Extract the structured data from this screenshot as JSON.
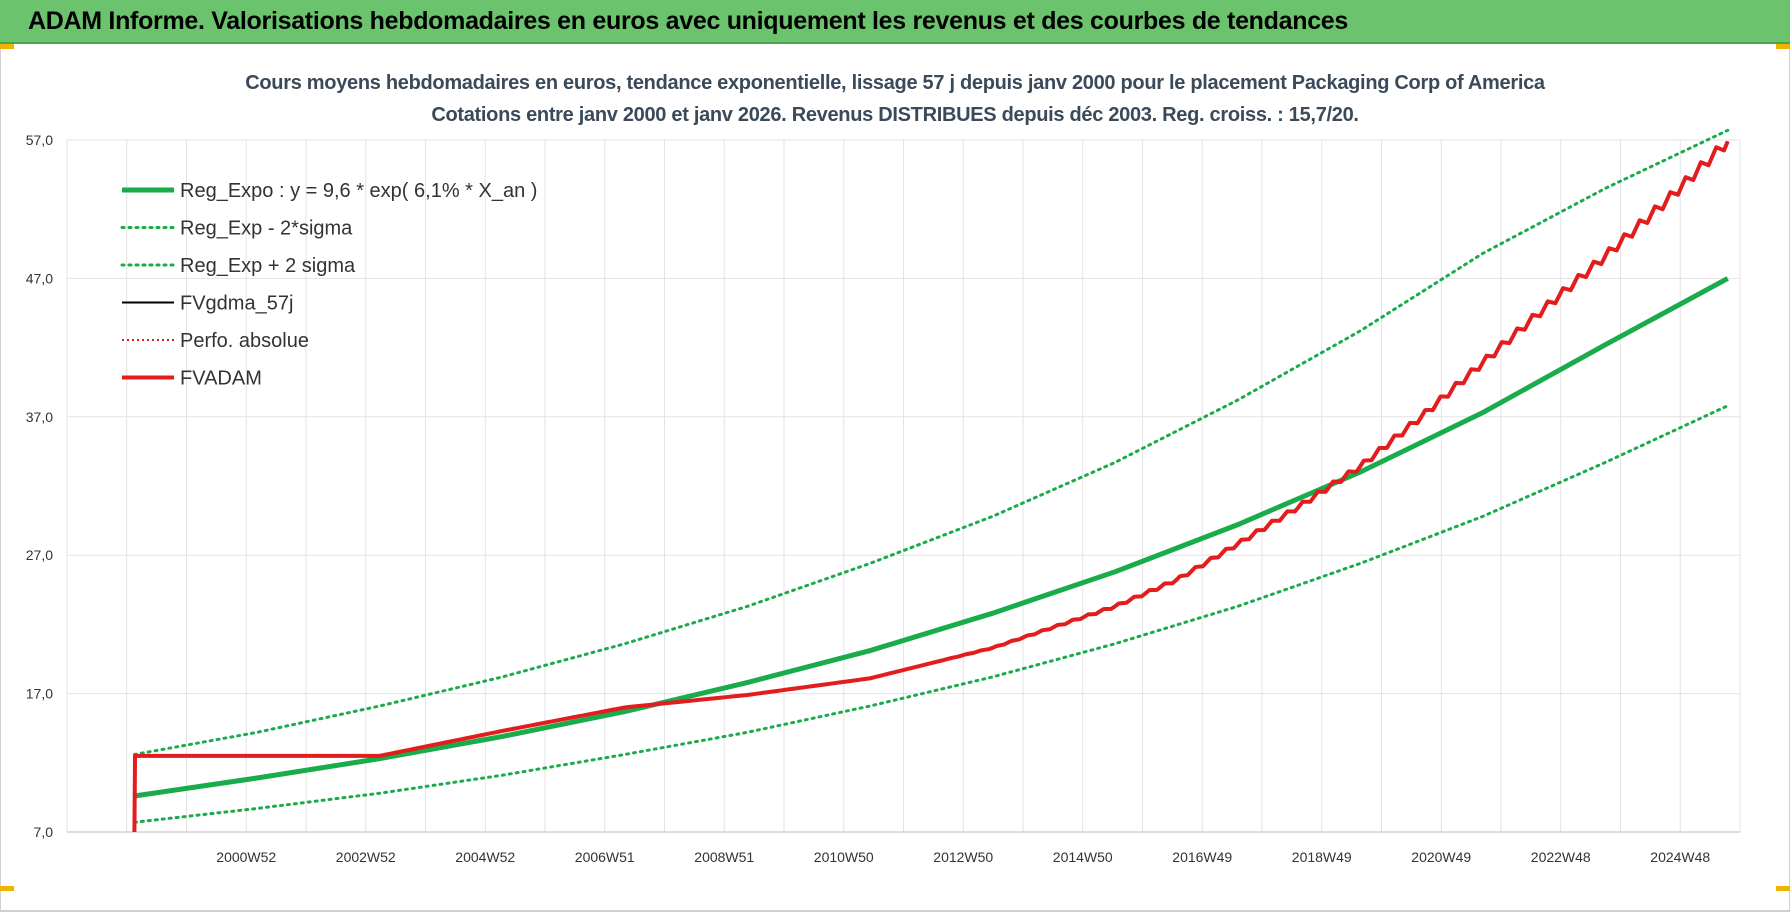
{
  "header": {
    "title": "ADAM Informe. Valorisations hebdomadaires en euros avec uniquement les revenus et des courbes de tendances"
  },
  "colors": {
    "banner": "#6cc36e",
    "green": "#1aab4b",
    "red": "#e31d1d",
    "black": "#000000"
  },
  "chart_data": {
    "type": "line",
    "title_line1": "Cours moyens hebdomadaires en euros, tendance exponentielle, lissage 57 j depuis janv 2000 pour le placement Packaging Corp of America",
    "title_line2": "Cotations entre janv 2000 et janv 2026. Revenus DISTRIBUES depuis déc 2003.  Reg. croiss. : 15,7/20.",
    "ylim": [
      7,
      57
    ],
    "y_ticks": [
      "7,0",
      "17,0",
      "27,0",
      "37,0",
      "47,0",
      "57,0"
    ],
    "x_ticks": [
      "2000W52",
      "2002W52",
      "2004W52",
      "2006W51",
      "2008W51",
      "2010W50",
      "2012W50",
      "2014W50",
      "2016W49",
      "2018W49",
      "2020W49",
      "2022W48",
      "2024W48"
    ],
    "grid": true,
    "legend_position": "top-left",
    "series": [
      {
        "name": "Reg_Expo : y = 9,6 * exp( 6,1% *  X_an )",
        "style": "green-thick",
        "x": [
          2000,
          2002,
          2004,
          2006,
          2008,
          2010,
          2012,
          2014,
          2016,
          2018,
          2020,
          2022,
          2024,
          2026
        ],
        "values": [
          9.6,
          10.9,
          12.3,
          13.9,
          15.7,
          17.8,
          20.1,
          22.8,
          25.8,
          29.2,
          33.0,
          37.3,
          42.2,
          47.0
        ]
      },
      {
        "name": "Reg_Exp - 2*sigma",
        "style": "green-dotted",
        "x": [
          2000,
          2002,
          2004,
          2006,
          2008,
          2010,
          2012,
          2014,
          2016,
          2018,
          2020,
          2022,
          2024,
          2026
        ],
        "values": [
          7.7,
          8.7,
          9.8,
          11.1,
          12.6,
          14.2,
          16.1,
          18.2,
          20.6,
          23.3,
          26.4,
          29.8,
          33.7,
          37.8
        ]
      },
      {
        "name": "Reg_Exp + 2 sigma",
        "style": "green-dotted",
        "x": [
          2000,
          2002,
          2004,
          2006,
          2008,
          2010,
          2012,
          2014,
          2016,
          2018,
          2020,
          2022,
          2024,
          2026
        ],
        "values": [
          12.6,
          14.2,
          16.1,
          18.2,
          20.6,
          23.3,
          26.4,
          29.8,
          33.7,
          38.2,
          43.2,
          48.8,
          53.5,
          57.7
        ]
      },
      {
        "name": "FVgdma_57j",
        "style": "black",
        "follows": "FVADAM"
      },
      {
        "name": "Perfo. absolue",
        "style": "red-dotted",
        "x": [],
        "values": []
      },
      {
        "name": "FVADAM",
        "style": "red-thick",
        "x": [
          2000.0,
          2000.01,
          2004.0,
          2006.0,
          2008.0,
          2010.0,
          2012.0,
          2014.0,
          2016.0,
          2017.0,
          2018.0,
          2019.0,
          2020.0,
          2021.0,
          2022.0,
          2023.0,
          2024.0,
          2025.0,
          2026.0
        ],
        "values": [
          7.0,
          12.5,
          12.5,
          14.3,
          16.0,
          16.9,
          18.1,
          20.3,
          23.3,
          25.2,
          27.8,
          30.5,
          33.4,
          37.0,
          40.9,
          44.8,
          48.6,
          52.6,
          56.9
        ]
      }
    ]
  }
}
